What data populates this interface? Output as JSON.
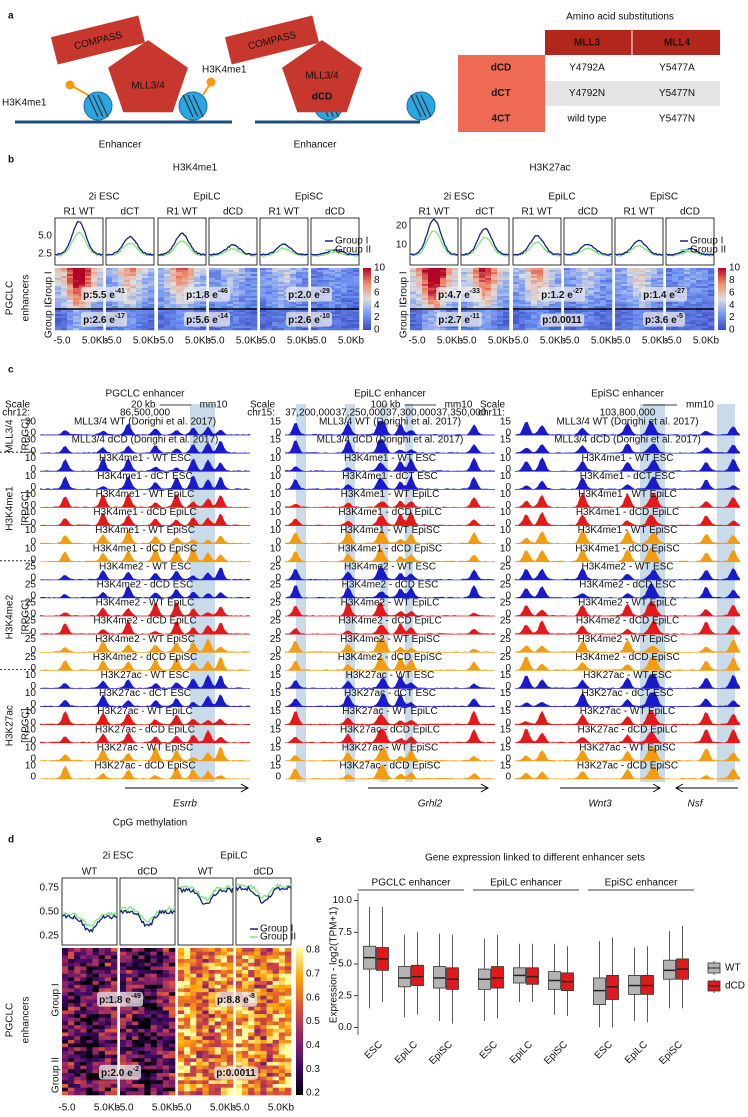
{
  "panel_a": {
    "label": "a",
    "compass": "COMPASS",
    "mll": "MLL3/4",
    "dcd": "dCD",
    "mark_left": "H3K4me1",
    "mark_right": "H3K4me1",
    "enhancer": "Enhancer",
    "table": {
      "title": "Amino acid substitutions",
      "header": [
        "MLL3",
        "MLL4"
      ],
      "rows": [
        [
          "dCD",
          "Y4792A",
          "Y5477A"
        ],
        [
          "dCT",
          "Y4792N",
          "Y5477N"
        ],
        [
          "4CT",
          "wild type",
          "Y5477N"
        ]
      ]
    }
  },
  "panel_b": {
    "label": "b",
    "marks": [
      "H3K4me1",
      "H3K27ac"
    ],
    "cells": [
      "2i ESC",
      "EpiLC",
      "EpiSC"
    ],
    "columns": [
      "R1 WT",
      "dCT",
      "R1 WT",
      "dCD",
      "R1 WT",
      "dCD"
    ],
    "yticks": [
      [
        "5.0",
        "2.5"
      ],
      [
        "20",
        "10"
      ]
    ],
    "legend": [
      "Group I",
      "Group II"
    ],
    "row_title": [
      "PGCLC",
      "enhancers"
    ],
    "groups": [
      "Group I",
      "Group II"
    ],
    "pvalues": [
      [
        {
          "base": "p:5.5 e",
          "exp": "-41"
        },
        {
          "base": "p:2.6 e",
          "exp": "-17"
        },
        {
          "base": "p:1.8 e",
          "exp": "-46"
        },
        {
          "base": "p:5.6 e",
          "exp": "-14"
        },
        {
          "base": "p:2.0 e",
          "exp": "-29"
        },
        {
          "base": "p:2.6 e",
          "exp": "-10"
        }
      ],
      [
        {
          "base": "p:4.7 e",
          "exp": "-33"
        },
        {
          "base": "p:2.7 e",
          "exp": "-11"
        },
        {
          "base": "p:1.2 e",
          "exp": "-27"
        },
        {
          "base": "p:0.0011"
        },
        {
          "base": "p:1.4 e",
          "exp": "-27"
        },
        {
          "base": "p:3.6 e",
          "exp": "-5"
        }
      ]
    ],
    "x_ticks": [
      "-5.0",
      "5.0Kb"
    ],
    "colorbar_ticks": [
      "10",
      "8",
      "6",
      "4",
      "2",
      "0"
    ]
  },
  "panel_c": {
    "label": "c",
    "titles": [
      "PGCLC enhancer",
      "EpiLC enhancer",
      "EpiSC enhancer"
    ],
    "row_labels": [
      [
        "MLL3/4",
        "[RPGC]"
      ],
      [
        "H3K4me1",
        "[RPGC]"
      ],
      [
        "H3K4me2",
        "[RPGC]"
      ],
      [
        "H3K27ac",
        "[RPGC]"
      ]
    ],
    "tracks": [
      "MLL3/4 WT (Dorighi et al. 2017)",
      "MLL3/4 dCD (Dorighi et al. 2017)",
      "H3K4me1 - WT ESC",
      "H3K4me1 - dCT ESC",
      "H3K4me1 - WT EpiLC",
      "H3K4me1 - dCD EpiLC",
      "H3K4me1 - WT EpiSC",
      "H3K4me1 - dCD EpiSC",
      "H3K4me2 - WT ESC",
      "H3K4me2 - dCD ESC",
      "H3K4me2 - WT EpiLC",
      "H3K4me2 - dCD EpiLC",
      "H3K4me2 - WT EpiSC",
      "H3K4me2 - dCD EpiSC",
      "H3K27ac - WT ESC",
      "H3K27ac - dCT ESC",
      "H3K27ac - WT EpiLC",
      "H3K27ac - dCD EpiLC",
      "H3K27ac - WT EpiSC",
      "H3K27ac - dCD EpiSC"
    ],
    "zero": "0",
    "track_max": [
      [
        "30",
        "10",
        "25",
        "10"
      ],
      [
        "15",
        "10",
        "25",
        "15"
      ],
      [
        "15",
        "10",
        "25",
        "15"
      ]
    ],
    "scales": [
      {
        "scale": "Scale",
        "chr": "chr12:",
        "kb": "20 kb",
        "coords": [
          "86,500,000"
        ],
        "build": "mm10"
      },
      {
        "scale": "Scale",
        "chr": "chr15:",
        "kb": "100 kb",
        "coords": [
          "37,200,000",
          "37,250,000",
          "37,300,000",
          "37,350,000"
        ],
        "build": "mm10"
      },
      {
        "scale": "Scale",
        "chr": "chr11:",
        "coords": [
          "103,800,000"
        ],
        "build": "mm10"
      }
    ],
    "genes": [
      [
        "Esrrb"
      ],
      [
        "Grhl2"
      ],
      [
        "Wnt3",
        "Nsf"
      ]
    ]
  },
  "panel_d": {
    "label": "d",
    "title": "CpG methylation",
    "cells": [
      "2i ESC",
      "EpiLC"
    ],
    "columns": [
      "WT",
      "dCD",
      "WT",
      "dCD"
    ],
    "yticks": [
      "0.75",
      "0.50",
      "0.25"
    ],
    "legend": [
      "Group I",
      "Group II"
    ],
    "row_title": [
      "PGCLC",
      "enhancers"
    ],
    "groups": [
      "Group I",
      "Group II"
    ],
    "pvalues": [
      {
        "base": "p:1.8 e",
        "exp": "-49"
      },
      {
        "base": "p:2.0 e",
        "exp": "-2"
      },
      {
        "base": "p:8.8 e",
        "exp": "-8"
      },
      {
        "base": "p:0.0011"
      }
    ],
    "x_ticks": [
      "-5.0",
      "5.0Kb"
    ],
    "colorbar_ticks": [
      "0.8",
      "0.7",
      "0.6",
      "0.5",
      "0.4",
      "0.3",
      "0.2"
    ]
  },
  "panel_e": {
    "label": "e"
  },
  "chart_data": {
    "type": "box",
    "title": "Gene expression linked to different enhancer sets",
    "y_label": "Expression - log2(TPM+1)",
    "group_labels": [
      "PGCLC enhancer",
      "EpiLC enhancer",
      "EpiSC enhancer"
    ],
    "categories": [
      "ESC",
      "EpiLC",
      "EpiSC",
      "ESC",
      "EpiLC",
      "EpiSC",
      "ESC",
      "EpiLC",
      "EpiSC"
    ],
    "ylim": [
      -0.6,
      10.6
    ],
    "yticks": [
      {
        "value": 0,
        "label": "0.0"
      },
      {
        "value": 2.5,
        "label": "2.5"
      },
      {
        "value": 5,
        "label": "5.0"
      },
      {
        "value": 7.5,
        "label": "7.5"
      },
      {
        "value": 10,
        "label": "10.0"
      }
    ],
    "legend": "right",
    "series": [
      {
        "name": "WT",
        "color": "#b3b3b3",
        "whisker_low": [
          1.5,
          0.8,
          0.5,
          0.5,
          2.0,
          1.0,
          0.0,
          0.5,
          1.5
        ],
        "q1": [
          4.6,
          3.2,
          3.1,
          3.0,
          3.5,
          3.0,
          1.8,
          2.6,
          3.8
        ],
        "median": [
          5.5,
          3.9,
          3.9,
          3.8,
          4.1,
          3.7,
          2.9,
          3.3,
          4.5
        ],
        "q3": [
          6.4,
          4.8,
          4.8,
          4.6,
          4.7,
          4.4,
          3.9,
          4.1,
          5.3
        ],
        "whisker_high": [
          9.5,
          7.3,
          7.4,
          7.0,
          6.6,
          6.6,
          6.8,
          6.3,
          7.6
        ]
      },
      {
        "name": "dCD",
        "color": "#e0191c",
        "whisker_low": [
          2.0,
          1.0,
          0.3,
          0.7,
          2.0,
          0.9,
          0.0,
          0.4,
          1.5
        ],
        "q1": [
          4.5,
          3.3,
          3.0,
          3.1,
          3.4,
          2.9,
          2.2,
          2.6,
          3.8
        ],
        "median": [
          5.4,
          4.0,
          3.8,
          3.9,
          4.0,
          3.6,
          3.2,
          3.3,
          4.6
        ],
        "q3": [
          6.3,
          4.9,
          4.7,
          4.8,
          4.7,
          4.3,
          4.1,
          4.1,
          5.4
        ],
        "whisker_high": [
          9.5,
          7.5,
          7.3,
          7.3,
          6.6,
          6.4,
          7.1,
          6.4,
          8.0
        ]
      }
    ]
  }
}
